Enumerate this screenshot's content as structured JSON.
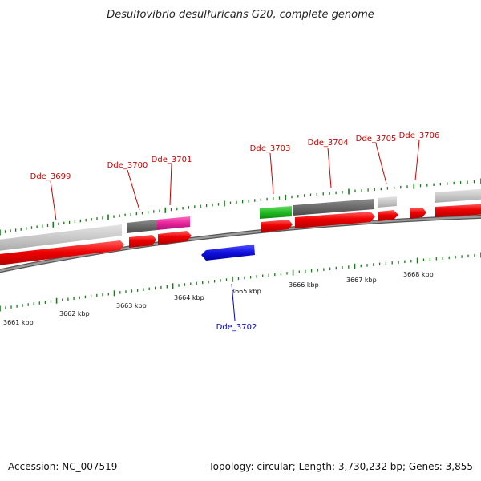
{
  "title": "Desulfovibrio desulfuricans G20, complete genome",
  "footer": {
    "accession": "Accession: NC_007519",
    "summary": "Topology: circular; Length: 3,730,232 bp; Genes: 3,855"
  },
  "colors": {
    "forward_cds": "#ee0000",
    "reverse_cds": "#1010dd",
    "label_forward": "#cc0000",
    "label_reverse": "#0000cc",
    "backbone": "#7a7a7a",
    "ticks": "#1a7a1a",
    "feature_light_gray": "#c8c8c8",
    "feature_dark_gray": "#6a6a6a",
    "feature_magenta": "#e8249a",
    "feature_green": "#22bb22"
  },
  "scale": {
    "labels": [
      "3661 kbp",
      "3662 kbp",
      "3663 kbp",
      "3664 kbp",
      "3665 kbp",
      "3666 kbp",
      "3667 kbp",
      "3668 kbp"
    ]
  },
  "genes": [
    {
      "id": "Dde_3699",
      "strand": "+"
    },
    {
      "id": "Dde_3700",
      "strand": "+"
    },
    {
      "id": "Dde_3701",
      "strand": "+"
    },
    {
      "id": "Dde_3702",
      "strand": "-"
    },
    {
      "id": "Dde_3703",
      "strand": "+"
    },
    {
      "id": "Dde_3704",
      "strand": "+"
    },
    {
      "id": "Dde_3705",
      "strand": "+"
    },
    {
      "id": "Dde_3706",
      "strand": "+"
    }
  ]
}
